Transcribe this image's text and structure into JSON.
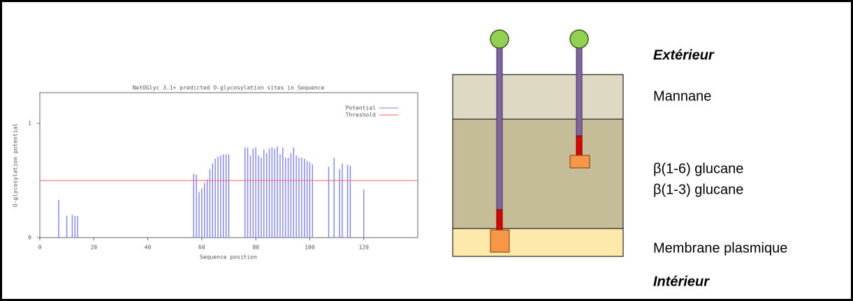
{
  "chart_data": {
    "type": "bar",
    "title": "NetOGlyc 3.1+ predicted O-glycosylation sites in Sequence",
    "xlabel": "Sequence position",
    "ylabel": "O-glycosylation potential",
    "xlim": [
      0,
      140
    ],
    "xticks": [
      0,
      20,
      40,
      60,
      80,
      100,
      120
    ],
    "ylim": [
      0,
      1.27
    ],
    "yticks": [
      0,
      1
    ],
    "legend": "top-right",
    "series": [
      {
        "name": "Potential",
        "color": "#8080ff",
        "x": [
          7,
          10,
          12,
          13,
          14,
          57,
          58,
          59,
          60,
          61,
          62,
          63,
          64,
          65,
          66,
          67,
          68,
          69,
          70,
          76,
          77,
          78,
          79,
          80,
          81,
          82,
          83,
          84,
          85,
          86,
          87,
          88,
          89,
          90,
          91,
          92,
          93,
          94,
          95,
          96,
          97,
          98,
          99,
          100,
          101,
          107,
          109,
          111,
          112,
          114,
          115,
          120
        ],
        "values": [
          0.33,
          0.19,
          0.2,
          0.19,
          0.19,
          0.56,
          0.55,
          0.4,
          0.43,
          0.48,
          0.51,
          0.6,
          0.65,
          0.69,
          0.71,
          0.72,
          0.73,
          0.73,
          0.73,
          0.79,
          0.79,
          0.72,
          0.78,
          0.79,
          0.72,
          0.7,
          0.77,
          0.74,
          0.78,
          0.79,
          0.78,
          0.8,
          0.73,
          0.79,
          0.7,
          0.7,
          0.74,
          0.79,
          0.72,
          0.7,
          0.7,
          0.69,
          0.67,
          0.66,
          0.64,
          0.62,
          0.7,
          0.6,
          0.65,
          0.64,
          0.63,
          0.42
        ]
      },
      {
        "name": "Threshold",
        "color": "#ff6060",
        "x": [
          0,
          140
        ],
        "values": [
          0.5,
          0.5
        ]
      }
    ]
  },
  "diagram": {
    "labels": [
      "Extérieur",
      "Mannane",
      "β(1-6) glucane",
      "β(1-3) glucane",
      "Membrane plasmique",
      "Intérieur"
    ]
  }
}
